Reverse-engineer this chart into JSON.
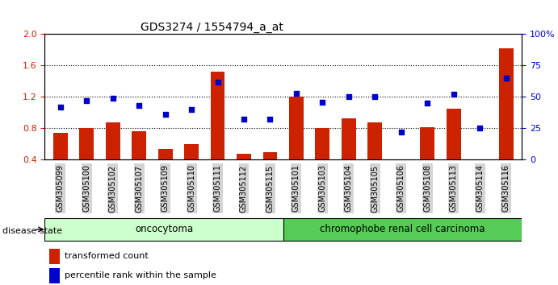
{
  "title": "GDS3274 / 1554794_a_at",
  "samples": [
    "GSM305099",
    "GSM305100",
    "GSM305102",
    "GSM305107",
    "GSM305109",
    "GSM305110",
    "GSM305111",
    "GSM305112",
    "GSM305115",
    "GSM305101",
    "GSM305103",
    "GSM305104",
    "GSM305105",
    "GSM305106",
    "GSM305108",
    "GSM305113",
    "GSM305114",
    "GSM305116"
  ],
  "transformed_count": [
    0.74,
    0.8,
    0.87,
    0.76,
    0.54,
    0.6,
    1.52,
    0.47,
    0.5,
    1.2,
    0.8,
    0.93,
    0.87,
    0.38,
    0.81,
    1.05,
    0.38,
    1.82
  ],
  "percentile_rank": [
    42,
    47,
    49,
    43,
    36,
    40,
    62,
    32,
    32,
    53,
    46,
    50,
    50,
    22,
    45,
    52,
    25,
    65
  ],
  "oncocytoma_count": 9,
  "chromophobe_count": 9,
  "ylim_left": [
    0.4,
    2.0
  ],
  "ylim_right": [
    0,
    100
  ],
  "yticks_left": [
    0.4,
    0.8,
    1.2,
    1.6,
    2.0
  ],
  "yticks_right": [
    0,
    25,
    50,
    75,
    100
  ],
  "bar_color": "#cc2200",
  "dot_color": "#0000cc",
  "oncocytoma_color": "#ccffcc",
  "chromophobe_color": "#55cc55",
  "tick_label_color_left": "#cc2200",
  "tick_label_color_right": "#0000cc",
  "disease_state_label": "disease state",
  "oncocytoma_label": "oncocytoma",
  "chromophobe_label": "chromophobe renal cell carcinoma",
  "legend_bar_label": "transformed count",
  "legend_dot_label": "percentile rank within the sample",
  "bar_width": 0.55,
  "tickbox_color": "#d4d4d4"
}
